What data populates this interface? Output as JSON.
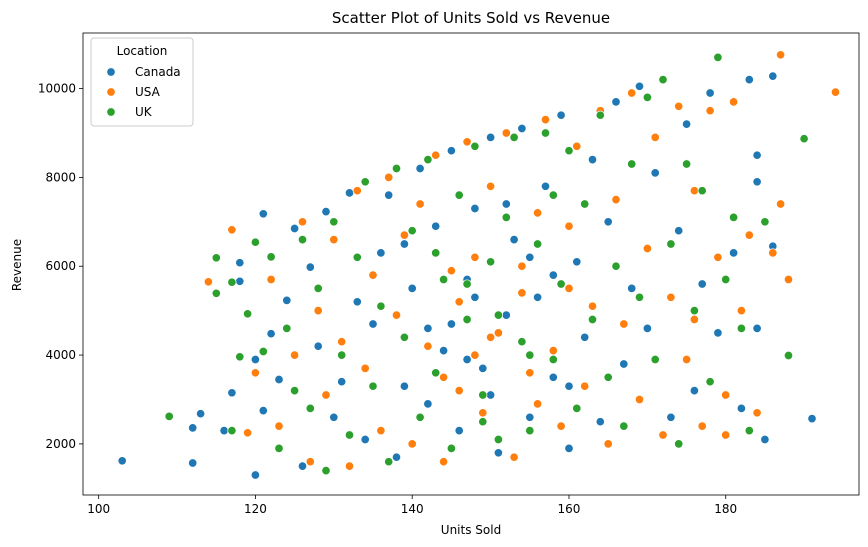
{
  "chart_data": {
    "type": "scatter",
    "title": "Scatter Plot of Units Sold vs Revenue",
    "xlabel": "Units Sold",
    "ylabel": "Revenue",
    "xlim": [
      98,
      197
    ],
    "ylim": [
      850,
      11250
    ],
    "xticks": [
      100,
      120,
      140,
      160,
      180
    ],
    "yticks": [
      2000,
      4000,
      6000,
      8000,
      10000
    ],
    "grid": false,
    "legend": {
      "title": "Location",
      "placement": "top-left"
    },
    "series": [
      {
        "name": "Canada",
        "color": "#1f77b4",
        "points": [
          [
            103,
            1620
          ],
          [
            112,
            1570
          ],
          [
            113,
            2680
          ],
          [
            112,
            2360
          ],
          [
            117,
            3150
          ],
          [
            116,
            2300
          ],
          [
            118,
            5660
          ],
          [
            118,
            6080
          ],
          [
            120,
            3900
          ],
          [
            121,
            2750
          ],
          [
            120,
            1300
          ],
          [
            122,
            4480
          ],
          [
            121,
            7180
          ],
          [
            124,
            5230
          ],
          [
            123,
            3450
          ],
          [
            125,
            6850
          ],
          [
            126,
            1500
          ],
          [
            127,
            5980
          ],
          [
            128,
            4200
          ],
          [
            129,
            7230
          ],
          [
            130,
            2600
          ],
          [
            131,
            3400
          ],
          [
            132,
            7650
          ],
          [
            133,
            5200
          ],
          [
            134,
            2100
          ],
          [
            135,
            4700
          ],
          [
            136,
            6300
          ],
          [
            137,
            7600
          ],
          [
            138,
            1700
          ],
          [
            139,
            3300
          ],
          [
            140,
            5500
          ],
          [
            141,
            8200
          ],
          [
            142,
            2900
          ],
          [
            143,
            6900
          ],
          [
            144,
            4100
          ],
          [
            145,
            8600
          ],
          [
            146,
            2300
          ],
          [
            147,
            5700
          ],
          [
            148,
            7300
          ],
          [
            149,
            3700
          ],
          [
            150,
            8900
          ],
          [
            151,
            1800
          ],
          [
            152,
            4900
          ],
          [
            153,
            6600
          ],
          [
            154,
            9100
          ],
          [
            155,
            2600
          ],
          [
            156,
            5300
          ],
          [
            157,
            7800
          ],
          [
            158,
            3500
          ],
          [
            159,
            9400
          ],
          [
            160,
            1900
          ],
          [
            161,
            6100
          ],
          [
            162,
            4400
          ],
          [
            163,
            8400
          ],
          [
            164,
            2500
          ],
          [
            165,
            7000
          ],
          [
            166,
            9700
          ],
          [
            167,
            3800
          ],
          [
            168,
            5500
          ],
          [
            169,
            10050
          ],
          [
            170,
            4600
          ],
          [
            171,
            8100
          ],
          [
            172,
            10200
          ],
          [
            173,
            2600
          ],
          [
            174,
            6800
          ],
          [
            175,
            9200
          ],
          [
            176,
            3200
          ],
          [
            177,
            5600
          ],
          [
            178,
            9900
          ],
          [
            179,
            4500
          ],
          [
            181,
            6300
          ],
          [
            182,
            2800
          ],
          [
            183,
            10200
          ],
          [
            184,
            7900
          ],
          [
            184,
            8500
          ],
          [
            185,
            2100
          ],
          [
            186,
            10280
          ],
          [
            186,
            6450
          ],
          [
            191,
            2570
          ],
          [
            184,
            4600
          ],
          [
            145,
            4700
          ],
          [
            150,
            3100
          ],
          [
            155,
            6200
          ],
          [
            148,
            5300
          ],
          [
            152,
            7400
          ],
          [
            142,
            4600
          ],
          [
            158,
            5800
          ],
          [
            147,
            3900
          ],
          [
            160,
            3300
          ],
          [
            139,
            6500
          ]
        ]
      },
      {
        "name": "USA",
        "color": "#ff7f0e",
        "points": [
          [
            114,
            5650
          ],
          [
            117,
            6820
          ],
          [
            119,
            2250
          ],
          [
            120,
            3600
          ],
          [
            122,
            5700
          ],
          [
            123,
            2400
          ],
          [
            125,
            4000
          ],
          [
            126,
            7000
          ],
          [
            127,
            1600
          ],
          [
            128,
            5000
          ],
          [
            129,
            3100
          ],
          [
            130,
            6600
          ],
          [
            131,
            4300
          ],
          [
            132,
            1500
          ],
          [
            133,
            7700
          ],
          [
            134,
            3700
          ],
          [
            135,
            5800
          ],
          [
            136,
            2300
          ],
          [
            137,
            8000
          ],
          [
            138,
            4900
          ],
          [
            139,
            6700
          ],
          [
            140,
            2000
          ],
          [
            141,
            7400
          ],
          [
            142,
            4200
          ],
          [
            143,
            8500
          ],
          [
            144,
            1600
          ],
          [
            145,
            5900
          ],
          [
            146,
            3200
          ],
          [
            147,
            8800
          ],
          [
            148,
            6200
          ],
          [
            149,
            2700
          ],
          [
            150,
            7800
          ],
          [
            151,
            4500
          ],
          [
            152,
            9000
          ],
          [
            153,
            1700
          ],
          [
            154,
            5400
          ],
          [
            155,
            3600
          ],
          [
            156,
            7200
          ],
          [
            157,
            9300
          ],
          [
            158,
            4100
          ],
          [
            159,
            2400
          ],
          [
            160,
            6900
          ],
          [
            161,
            8700
          ],
          [
            162,
            3300
          ],
          [
            163,
            5100
          ],
          [
            164,
            9500
          ],
          [
            165,
            2000
          ],
          [
            166,
            7500
          ],
          [
            167,
            4700
          ],
          [
            168,
            9900
          ],
          [
            169,
            3000
          ],
          [
            170,
            6400
          ],
          [
            171,
            8900
          ],
          [
            172,
            2200
          ],
          [
            173,
            5300
          ],
          [
            174,
            9600
          ],
          [
            175,
            3900
          ],
          [
            176,
            7700
          ],
          [
            177,
            2400
          ],
          [
            178,
            9500
          ],
          [
            179,
            6200
          ],
          [
            180,
            3100
          ],
          [
            181,
            9700
          ],
          [
            182,
            5000
          ],
          [
            183,
            6700
          ],
          [
            184,
            2700
          ],
          [
            186,
            6300
          ],
          [
            187,
            10760
          ],
          [
            187,
            7400
          ],
          [
            188,
            5700
          ],
          [
            194,
            9920
          ],
          [
            180,
            2200
          ],
          [
            176,
            4800
          ],
          [
            146,
            5200
          ],
          [
            150,
            4400
          ],
          [
            154,
            6000
          ],
          [
            144,
            3500
          ],
          [
            160,
            5500
          ],
          [
            156,
            2900
          ],
          [
            148,
            4000
          ]
        ]
      },
      {
        "name": "UK",
        "color": "#2ca02c",
        "points": [
          [
            109,
            2620
          ],
          [
            115,
            5390
          ],
          [
            115,
            6190
          ],
          [
            117,
            5640
          ],
          [
            117,
            2300
          ],
          [
            118,
            3960
          ],
          [
            119,
            4930
          ],
          [
            120,
            6540
          ],
          [
            121,
            4080
          ],
          [
            122,
            6210
          ],
          [
            123,
            1900
          ],
          [
            124,
            4600
          ],
          [
            125,
            3200
          ],
          [
            126,
            6600
          ],
          [
            127,
            2800
          ],
          [
            128,
            5500
          ],
          [
            129,
            1400
          ],
          [
            130,
            7000
          ],
          [
            131,
            4000
          ],
          [
            132,
            2200
          ],
          [
            133,
            6200
          ],
          [
            134,
            7900
          ],
          [
            135,
            3300
          ],
          [
            136,
            5100
          ],
          [
            137,
            1600
          ],
          [
            138,
            8200
          ],
          [
            139,
            4400
          ],
          [
            140,
            6800
          ],
          [
            141,
            2600
          ],
          [
            142,
            8400
          ],
          [
            143,
            3600
          ],
          [
            144,
            5700
          ],
          [
            145,
            1900
          ],
          [
            146,
            7600
          ],
          [
            147,
            4800
          ],
          [
            148,
            8700
          ],
          [
            149,
            3100
          ],
          [
            150,
            6100
          ],
          [
            151,
            2100
          ],
          [
            152,
            7100
          ],
          [
            153,
            8900
          ],
          [
            154,
            4300
          ],
          [
            155,
            2300
          ],
          [
            156,
            6500
          ],
          [
            157,
            9000
          ],
          [
            158,
            3900
          ],
          [
            159,
            5600
          ],
          [
            160,
            8600
          ],
          [
            161,
            2800
          ],
          [
            162,
            7400
          ],
          [
            163,
            4800
          ],
          [
            164,
            9400
          ],
          [
            165,
            3500
          ],
          [
            166,
            6000
          ],
          [
            167,
            2400
          ],
          [
            168,
            8300
          ],
          [
            169,
            5300
          ],
          [
            170,
            9800
          ],
          [
            171,
            3900
          ],
          [
            172,
            10200
          ],
          [
            173,
            6500
          ],
          [
            174,
            2000
          ],
          [
            175,
            8300
          ],
          [
            176,
            5000
          ],
          [
            177,
            7700
          ],
          [
            178,
            3400
          ],
          [
            179,
            10700
          ],
          [
            180,
            5700
          ],
          [
            181,
            7100
          ],
          [
            182,
            4600
          ],
          [
            183,
            2300
          ],
          [
            185,
            7000
          ],
          [
            188,
            3990
          ],
          [
            190,
            8870
          ],
          [
            147,
            5600
          ],
          [
            151,
            4900
          ],
          [
            155,
            4000
          ],
          [
            143,
            6300
          ],
          [
            158,
            7600
          ],
          [
            149,
            2500
          ]
        ]
      }
    ]
  }
}
